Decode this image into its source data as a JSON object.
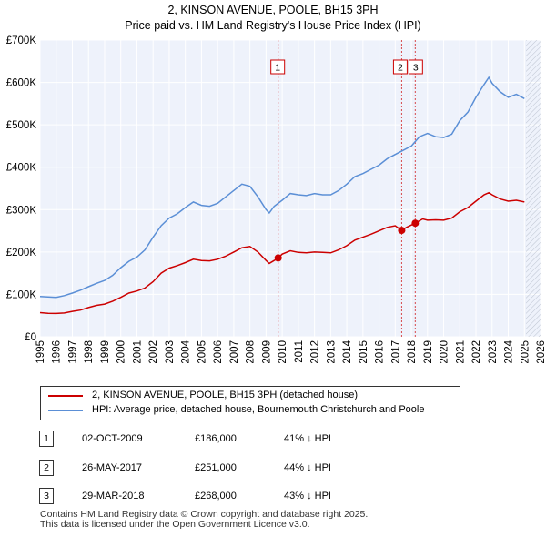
{
  "header": {
    "title": "2, KINSON AVENUE, POOLE, BH15 3PH",
    "subtitle": "Price paid vs. HM Land Registry's House Price Index (HPI)"
  },
  "chart_data": {
    "type": "line",
    "title": "2, KINSON AVENUE, POOLE, BH15 3PH",
    "subtitle": "Price paid vs. HM Land Registry's House Price Index (HPI)",
    "xlim": [
      1995,
      2026
    ],
    "ylim": [
      0,
      700000
    ],
    "y_ticks": [
      {
        "value": 0,
        "label": "£0"
      },
      {
        "value": 100000,
        "label": "£100K"
      },
      {
        "value": 200000,
        "label": "£200K"
      },
      {
        "value": 300000,
        "label": "£300K"
      },
      {
        "value": 400000,
        "label": "£400K"
      },
      {
        "value": 500000,
        "label": "£500K"
      },
      {
        "value": 600000,
        "label": "£600K"
      },
      {
        "value": 700000,
        "label": "£700K"
      }
    ],
    "x_ticks": [
      "1995",
      "1996",
      "1997",
      "1998",
      "1999",
      "2000",
      "2001",
      "2002",
      "2003",
      "2004",
      "2005",
      "2006",
      "2007",
      "2008",
      "2009",
      "2010",
      "2011",
      "2012",
      "2013",
      "2014",
      "2015",
      "2016",
      "2017",
      "2018",
      "2019",
      "2020",
      "2021",
      "2022",
      "2023",
      "2024",
      "2025",
      "2026"
    ],
    "grid": true,
    "series": [
      {
        "name": "2, KINSON AVENUE, POOLE, BH15 3PH (detached house)",
        "color": "#cc0000",
        "points": [
          [
            1995.0,
            57000
          ],
          [
            1995.5,
            55500
          ],
          [
            1996.0,
            55000
          ],
          [
            1996.5,
            56000
          ],
          [
            1997.0,
            60000
          ],
          [
            1997.5,
            63000
          ],
          [
            1998.0,
            69000
          ],
          [
            1998.5,
            74000
          ],
          [
            1999.0,
            77000
          ],
          [
            1999.5,
            84000
          ],
          [
            2000.0,
            93000
          ],
          [
            2000.5,
            103000
          ],
          [
            2001.0,
            108000
          ],
          [
            2001.5,
            115000
          ],
          [
            2002.0,
            130000
          ],
          [
            2002.5,
            150000
          ],
          [
            2003.0,
            162000
          ],
          [
            2003.5,
            168000
          ],
          [
            2004.0,
            175000
          ],
          [
            2004.5,
            183000
          ],
          [
            2005.0,
            180000
          ],
          [
            2005.5,
            179000
          ],
          [
            2006.0,
            183000
          ],
          [
            2006.5,
            190000
          ],
          [
            2007.0,
            200000
          ],
          [
            2007.5,
            210000
          ],
          [
            2008.0,
            213000
          ],
          [
            2008.5,
            200000
          ],
          [
            2009.0,
            180000
          ],
          [
            2009.2,
            173000
          ],
          [
            2009.5,
            180000
          ],
          [
            2009.75,
            186000
          ],
          [
            2010.0,
            195000
          ],
          [
            2010.5,
            203000
          ],
          [
            2011.0,
            199000
          ],
          [
            2011.5,
            198000
          ],
          [
            2012.0,
            200000
          ],
          [
            2012.5,
            199000
          ],
          [
            2013.0,
            198000
          ],
          [
            2013.5,
            205000
          ],
          [
            2014.0,
            215000
          ],
          [
            2014.5,
            228000
          ],
          [
            2015.0,
            235000
          ],
          [
            2015.5,
            242000
          ],
          [
            2016.0,
            250000
          ],
          [
            2016.5,
            258000
          ],
          [
            2017.0,
            262000
          ],
          [
            2017.4,
            251000
          ],
          [
            2017.7,
            258000
          ],
          [
            2018.24,
            268000
          ],
          [
            2018.7,
            278000
          ],
          [
            2019.0,
            275000
          ],
          [
            2019.5,
            276000
          ],
          [
            2020.0,
            275000
          ],
          [
            2020.5,
            280000
          ],
          [
            2021.0,
            295000
          ],
          [
            2021.5,
            305000
          ],
          [
            2022.0,
            320000
          ],
          [
            2022.5,
            335000
          ],
          [
            2022.8,
            340000
          ],
          [
            2023.0,
            335000
          ],
          [
            2023.5,
            325000
          ],
          [
            2024.0,
            320000
          ],
          [
            2024.5,
            322000
          ],
          [
            2025.0,
            318000
          ]
        ]
      },
      {
        "name": "HPI: Average price, detached house, Bournemouth Christchurch and Poole",
        "color": "#5b8fd6",
        "points": [
          [
            1995.0,
            95000
          ],
          [
            1995.5,
            94000
          ],
          [
            1996.0,
            93000
          ],
          [
            1996.5,
            97000
          ],
          [
            1997.0,
            103000
          ],
          [
            1997.5,
            110000
          ],
          [
            1998.0,
            118000
          ],
          [
            1998.5,
            126000
          ],
          [
            1999.0,
            133000
          ],
          [
            1999.5,
            145000
          ],
          [
            2000.0,
            163000
          ],
          [
            2000.5,
            178000
          ],
          [
            2001.0,
            188000
          ],
          [
            2001.5,
            205000
          ],
          [
            2002.0,
            235000
          ],
          [
            2002.5,
            262000
          ],
          [
            2003.0,
            280000
          ],
          [
            2003.5,
            290000
          ],
          [
            2004.0,
            305000
          ],
          [
            2004.5,
            318000
          ],
          [
            2005.0,
            310000
          ],
          [
            2005.5,
            308000
          ],
          [
            2006.0,
            315000
          ],
          [
            2006.5,
            330000
          ],
          [
            2007.0,
            345000
          ],
          [
            2007.5,
            360000
          ],
          [
            2008.0,
            355000
          ],
          [
            2008.5,
            330000
          ],
          [
            2009.0,
            300000
          ],
          [
            2009.2,
            292000
          ],
          [
            2009.5,
            308000
          ],
          [
            2010.0,
            322000
          ],
          [
            2010.5,
            338000
          ],
          [
            2011.0,
            335000
          ],
          [
            2011.5,
            333000
          ],
          [
            2012.0,
            338000
          ],
          [
            2012.5,
            335000
          ],
          [
            2013.0,
            335000
          ],
          [
            2013.5,
            345000
          ],
          [
            2014.0,
            360000
          ],
          [
            2014.5,
            378000
          ],
          [
            2015.0,
            385000
          ],
          [
            2015.5,
            395000
          ],
          [
            2016.0,
            405000
          ],
          [
            2016.5,
            420000
          ],
          [
            2017.0,
            430000
          ],
          [
            2017.5,
            440000
          ],
          [
            2018.0,
            450000
          ],
          [
            2018.5,
            472000
          ],
          [
            2019.0,
            480000
          ],
          [
            2019.5,
            472000
          ],
          [
            2020.0,
            470000
          ],
          [
            2020.5,
            478000
          ],
          [
            2021.0,
            510000
          ],
          [
            2021.5,
            530000
          ],
          [
            2022.0,
            565000
          ],
          [
            2022.5,
            595000
          ],
          [
            2022.8,
            612000
          ],
          [
            2023.0,
            598000
          ],
          [
            2023.5,
            578000
          ],
          [
            2024.0,
            565000
          ],
          [
            2024.5,
            572000
          ],
          [
            2025.0,
            562000
          ]
        ]
      }
    ],
    "sales": [
      {
        "label": "1",
        "date": 2009.75,
        "price": 186000
      },
      {
        "label": "2",
        "date": 2017.4,
        "price": 251000
      },
      {
        "label": "3",
        "date": 2018.24,
        "price": 268000
      }
    ]
  },
  "legend": {
    "items": [
      {
        "label": "2, KINSON AVENUE, POOLE, BH15 3PH (detached house)",
        "color": "#cc0000"
      },
      {
        "label": "HPI: Average price, detached house, Bournemouth Christchurch and Poole",
        "color": "#5b8fd6"
      }
    ]
  },
  "sales_table": [
    {
      "num": "1",
      "date": "02-OCT-2009",
      "price": "£186,000",
      "pct": "41% ↓ HPI"
    },
    {
      "num": "2",
      "date": "26-MAY-2017",
      "price": "£251,000",
      "pct": "44% ↓ HPI"
    },
    {
      "num": "3",
      "date": "29-MAR-2018",
      "price": "£268,000",
      "pct": "43% ↓ HPI"
    }
  ],
  "footer": {
    "line1": "Contains HM Land Registry data © Crown copyright and database right 2025.",
    "line2": "This data is licensed under the Open Government Licence v3.0."
  }
}
